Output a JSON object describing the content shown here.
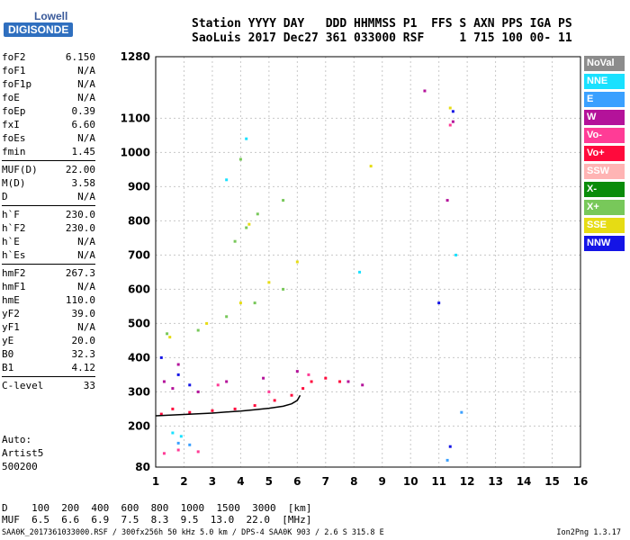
{
  "logo": {
    "top": "Lowell",
    "bottom": "DIGISONDE"
  },
  "header": {
    "line1": "Station YYYY DAY   DDD HHMMSS P1  FFS S AXN PPS IGA PS",
    "line2": "SaoLuis 2017 Dec27 361 033000 RSF     1 715 100 00- 11"
  },
  "params": [
    {
      "label": "foF2",
      "value": "6.150"
    },
    {
      "label": "foF1",
      "value": "N/A"
    },
    {
      "label": "foF1p",
      "value": "N/A"
    },
    {
      "label": "foE",
      "value": "N/A"
    },
    {
      "label": "foEp",
      "value": "0.39"
    },
    {
      "label": "fxI",
      "value": "6.60"
    },
    {
      "label": "foEs",
      "value": "N/A"
    },
    {
      "label": "fmin",
      "value": "1.45"
    },
    {
      "sep": true
    },
    {
      "label": "MUF(D)",
      "value": "22.00"
    },
    {
      "label": "M(D)",
      "value": "3.58"
    },
    {
      "label": "D",
      "value": "N/A"
    },
    {
      "sep": true
    },
    {
      "label": "h`F",
      "value": "230.0"
    },
    {
      "label": "h`F2",
      "value": "230.0"
    },
    {
      "label": "h`E",
      "value": "N/A"
    },
    {
      "label": "h`Es",
      "value": "N/A"
    },
    {
      "sep": true
    },
    {
      "label": "hmF2",
      "value": "267.3"
    },
    {
      "label": "hmF1",
      "value": "N/A"
    },
    {
      "label": "hmE",
      "value": "110.0"
    },
    {
      "label": "yF2",
      "value": "39.0"
    },
    {
      "label": "yF1",
      "value": "N/A"
    },
    {
      "label": "yE",
      "value": "20.0"
    },
    {
      "label": "B0",
      "value": "32.3"
    },
    {
      "label": "B1",
      "value": "4.12"
    },
    {
      "sep": true
    },
    {
      "label": "C-level",
      "value": "33"
    }
  ],
  "auto": {
    "line1": "Auto:",
    "line2": "Artist5",
    "line3": "500200"
  },
  "legend": [
    {
      "label": "NoVal",
      "color": "#8c8c8c"
    },
    {
      "label": "NNE",
      "color": "#19e1ff"
    },
    {
      "label": "E",
      "color": "#3aa0ff"
    },
    {
      "label": "W",
      "color": "#b4129a"
    },
    {
      "label": "Vo-",
      "color": "#ff3c96"
    },
    {
      "label": "Vo+",
      "color": "#ff0a3c"
    },
    {
      "label": "SSW",
      "color": "#ffb4b4"
    },
    {
      "label": "X-",
      "color": "#0a8c0a"
    },
    {
      "label": "X+",
      "color": "#78c85a"
    },
    {
      "label": "SSE",
      "color": "#e6dc14"
    },
    {
      "label": "NNW",
      "color": "#1414e6"
    }
  ],
  "muf_table": {
    "row1": "D    100  200  400  600  800  1000  1500  3000  [km]",
    "row2": "MUF  6.5  6.6  6.9  7.5  8.3  9.5  13.0  22.0  [MHz]"
  },
  "footer": "SAA0K_2017361033000.RSF / 300fx256h 50 kHz 5.0 km / DPS-4 SAA0K 903 / 2.6 S 315.8 E",
  "version": "Ion2Png 1.3.17",
  "chart_data": {
    "type": "scatter",
    "x_ticks": [
      1,
      2,
      3,
      4,
      5,
      6,
      7,
      8,
      9,
      10,
      11,
      12,
      13,
      14,
      15,
      16
    ],
    "y_ticks": [
      80,
      200,
      300,
      400,
      500,
      600,
      700,
      800,
      900,
      1000,
      1100,
      1280
    ],
    "xlim": [
      1,
      16
    ],
    "ylim": [
      80,
      1280
    ],
    "grid": true,
    "series": [
      {
        "name": "Vo+",
        "points": [
          [
            1.2,
            235
          ],
          [
            1.6,
            250
          ],
          [
            2.2,
            240
          ],
          [
            3.0,
            245
          ],
          [
            3.8,
            250
          ],
          [
            4.5,
            260
          ],
          [
            5.2,
            275
          ],
          [
            5.8,
            290
          ],
          [
            6.2,
            310
          ],
          [
            6.5,
            330
          ],
          [
            7.0,
            340
          ],
          [
            7.5,
            330
          ]
        ]
      },
      {
        "name": "W",
        "points": [
          [
            1.3,
            330
          ],
          [
            1.6,
            310
          ],
          [
            1.8,
            380
          ],
          [
            2.5,
            300
          ],
          [
            3.5,
            330
          ],
          [
            4.8,
            340
          ],
          [
            6.0,
            360
          ],
          [
            7.8,
            330
          ],
          [
            8.3,
            320
          ],
          [
            10.5,
            1180
          ],
          [
            11.5,
            1090
          ],
          [
            11.3,
            860
          ]
        ]
      },
      {
        "name": "X+",
        "points": [
          [
            1.4,
            470
          ],
          [
            2.5,
            480
          ],
          [
            3.5,
            520
          ],
          [
            4.5,
            560
          ],
          [
            5.5,
            600
          ],
          [
            3.8,
            740
          ],
          [
            4.2,
            780
          ],
          [
            4.6,
            820
          ],
          [
            5.5,
            860
          ],
          [
            4.0,
            980
          ]
        ]
      },
      {
        "name": "SSE",
        "points": [
          [
            1.5,
            460
          ],
          [
            2.8,
            500
          ],
          [
            4.0,
            560
          ],
          [
            5.0,
            620
          ],
          [
            6.0,
            680
          ],
          [
            4.3,
            790
          ],
          [
            8.6,
            960
          ],
          [
            11.4,
            1130
          ]
        ]
      },
      {
        "name": "NNE",
        "points": [
          [
            1.6,
            180
          ],
          [
            1.9,
            170
          ],
          [
            3.5,
            920
          ],
          [
            4.2,
            1040
          ],
          [
            8.2,
            650
          ],
          [
            11.6,
            700
          ]
        ]
      },
      {
        "name": "NNW",
        "points": [
          [
            1.2,
            400
          ],
          [
            1.8,
            350
          ],
          [
            2.2,
            320
          ],
          [
            11.0,
            560
          ],
          [
            11.5,
            1120
          ],
          [
            11.4,
            140
          ]
        ]
      },
      {
        "name": "Vo-",
        "points": [
          [
            1.3,
            120
          ],
          [
            1.8,
            130
          ],
          [
            2.5,
            125
          ],
          [
            3.2,
            320
          ],
          [
            5.0,
            300
          ],
          [
            6.4,
            350
          ],
          [
            11.4,
            1080
          ]
        ]
      },
      {
        "name": "E",
        "points": [
          [
            1.8,
            150
          ],
          [
            2.2,
            145
          ],
          [
            11.8,
            240
          ],
          [
            11.3,
            100
          ]
        ]
      }
    ],
    "trace_points": [
      [
        1.0,
        230
      ],
      [
        1.5,
        232
      ],
      [
        2.0,
        234
      ],
      [
        2.5,
        236
      ],
      [
        3.0,
        238
      ],
      [
        3.5,
        241
      ],
      [
        4.0,
        244
      ],
      [
        4.5,
        248
      ],
      [
        5.0,
        252
      ],
      [
        5.5,
        258
      ],
      [
        5.8,
        265
      ],
      [
        6.0,
        275
      ],
      [
        6.1,
        290
      ]
    ]
  }
}
